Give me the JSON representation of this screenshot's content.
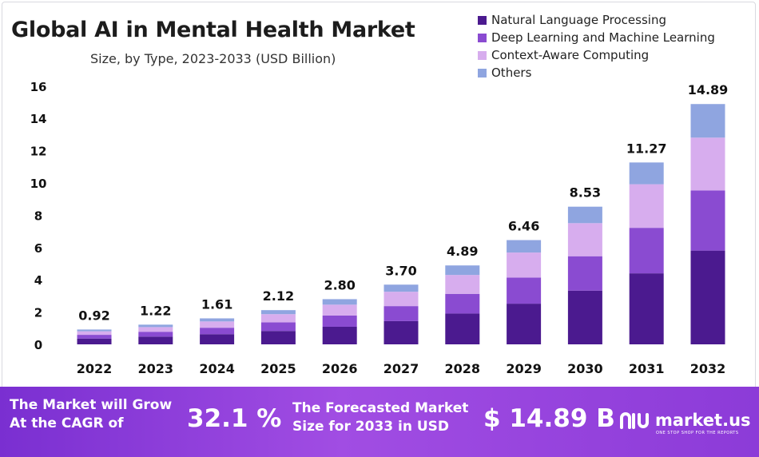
{
  "chart_data": {
    "type": "bar",
    "stacked": true,
    "title": "Global AI in Mental Health Market",
    "subtitle": "Size, by Type, 2023-2033 (USD Billion)",
    "categories": [
      "2022",
      "2023",
      "2024",
      "2025",
      "2026",
      "2027",
      "2028",
      "2029",
      "2030",
      "2031",
      "2032"
    ],
    "series": [
      {
        "name": "Natural Language Processing",
        "color": "#4b1a8f",
        "values": [
          0.36,
          0.48,
          0.63,
          0.83,
          1.09,
          1.44,
          1.91,
          2.52,
          3.33,
          4.4,
          5.81
        ]
      },
      {
        "name": "Deep Learning and Machine Learning",
        "color": "#8a4bd1",
        "values": [
          0.23,
          0.3,
          0.4,
          0.53,
          0.7,
          0.93,
          1.22,
          1.62,
          2.13,
          2.82,
          3.72
        ]
      },
      {
        "name": "Context-Aware Computing",
        "color": "#d7adee",
        "values": [
          0.22,
          0.29,
          0.39,
          0.51,
          0.67,
          0.89,
          1.17,
          1.55,
          2.05,
          2.7,
          3.28
        ]
      },
      {
        "name": "Others",
        "color": "#8fa5e0",
        "values": [
          0.11,
          0.15,
          0.19,
          0.25,
          0.34,
          0.44,
          0.59,
          0.77,
          1.02,
          1.35,
          2.08
        ]
      }
    ],
    "totals": [
      "0.92",
      "1.22",
      "1.61",
      "2.12",
      "2.80",
      "3.70",
      "4.89",
      "6.46",
      "8.53",
      "11.27",
      "14.89"
    ],
    "ylim": [
      0,
      16
    ],
    "yticks": [
      0,
      2,
      4,
      6,
      8,
      10,
      12,
      14,
      16
    ],
    "grid": false,
    "legend": "top-right",
    "xlabel": "",
    "ylabel": ""
  },
  "banner": {
    "cagr_label_line1": "The Market will Grow",
    "cagr_label_line2": "At the CAGR of",
    "cagr_value": "32.1 %",
    "forecast_label_line1": "The Forecasted Market",
    "forecast_label_line2": "Size for 2033 in USD",
    "forecast_value": "$ 14.89 B",
    "brand_name": "market.us",
    "brand_tagline": "ONE STOP SHOP FOR THE REPORTS"
  },
  "colors": {
    "banner": "#8c3bd8",
    "text_dark": "#1c1c1c"
  }
}
